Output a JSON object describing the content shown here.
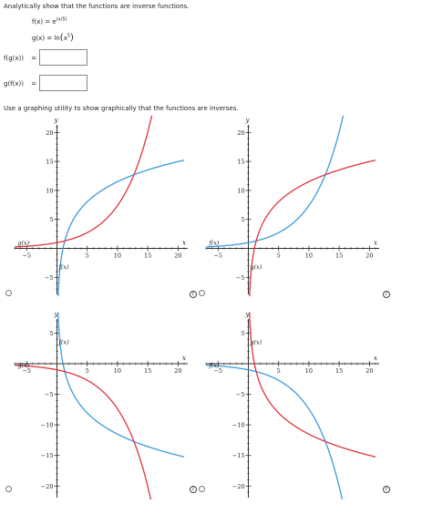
{
  "question": {
    "prompt": "Analytically show that the functions are inverse functions.",
    "f_label": "f(x)",
    "f_eq": "=",
    "f_base": "e",
    "f_exponent": "(x/5)",
    "g_label": "g(x)",
    "g_eq": "=",
    "g_prefix": "ln",
    "g_arg_base": "x",
    "g_arg_exp": "5"
  },
  "answers": [
    {
      "label": "f(g(x))",
      "eq": "=",
      "value": ""
    },
    {
      "label": "g(f(x))",
      "eq": "=",
      "value": ""
    }
  ],
  "graph_prompt": "Use a graphing utility to show graphically that the functions are inverses.",
  "graph_labels": {
    "x_axis": "x",
    "y_axis": "y",
    "f_label": "f(x)",
    "g_label": "g(x)"
  },
  "colors": {
    "f": "#3a9ad9",
    "g": "#e0323d",
    "axis": "#333333"
  },
  "icons": [
    "radio-button",
    "info-icon"
  ],
  "chart_data": [
    {
      "type": "line",
      "option": "top-left",
      "xlim": [
        -7,
        21
      ],
      "ylim": [
        -7,
        21
      ],
      "x_ticks": [
        -5,
        5,
        10,
        15,
        20
      ],
      "y_ticks": [
        -5,
        5,
        10,
        15,
        20
      ],
      "series": [
        {
          "name": "f(x)",
          "color": "#3a9ad9",
          "fn": "ln_x5"
        },
        {
          "name": "g(x)",
          "color": "#e0323d",
          "fn": "exp_x5"
        }
      ]
    },
    {
      "type": "line",
      "option": "top-right",
      "xlim": [
        -7,
        21
      ],
      "ylim": [
        -7,
        21
      ],
      "x_ticks": [
        -5,
        5,
        10,
        15,
        20
      ],
      "y_ticks": [
        -5,
        5,
        10,
        15,
        20
      ],
      "series": [
        {
          "name": "f(x)",
          "color": "#3a9ad9",
          "fn": "exp_x5"
        },
        {
          "name": "g(x)",
          "color": "#e0323d",
          "fn": "ln_x5"
        }
      ]
    },
    {
      "type": "line",
      "option": "bottom-left",
      "xlim": [
        -7,
        21
      ],
      "ylim": [
        -21,
        7
      ],
      "x_ticks": [
        -5,
        5,
        10,
        15,
        20
      ],
      "y_ticks": [
        -20,
        -15,
        -10,
        -5,
        5
      ],
      "series": [
        {
          "name": "f(x)",
          "color": "#3a9ad9",
          "fn": "neg_ln_x5"
        },
        {
          "name": "g(x)",
          "color": "#e0323d",
          "fn": "neg_exp_x5"
        }
      ]
    },
    {
      "type": "line",
      "option": "bottom-right",
      "xlim": [
        -7,
        21
      ],
      "ylim": [
        -21,
        7
      ],
      "x_ticks": [
        -5,
        5,
        10,
        15,
        20
      ],
      "y_ticks": [
        -20,
        -15,
        -10,
        -5,
        5
      ],
      "series": [
        {
          "name": "f(x)",
          "color": "#3a9ad9",
          "fn": "neg_exp_x5"
        },
        {
          "name": "g(x)",
          "color": "#e0323d",
          "fn": "neg_ln_x5"
        }
      ]
    }
  ]
}
